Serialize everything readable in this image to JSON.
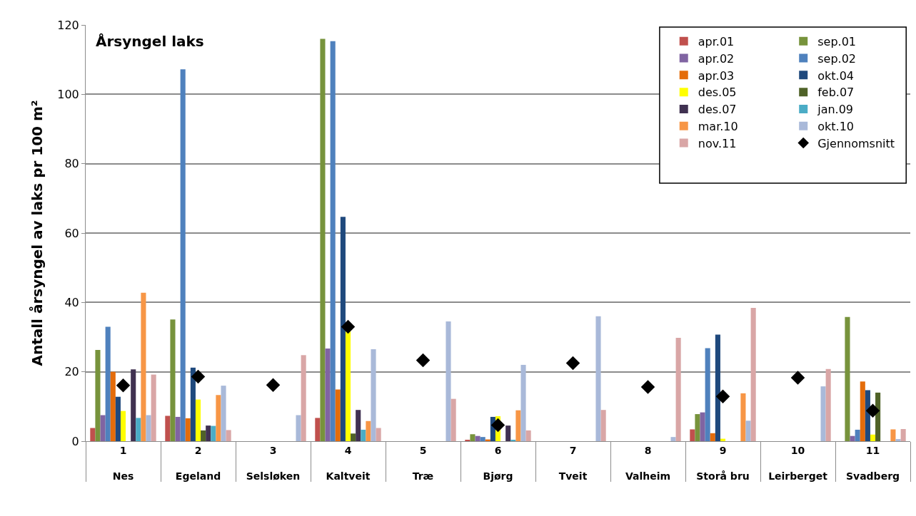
{
  "chart_data": {
    "type": "bar",
    "title": "Årsyngel laks",
    "ylabel": "Antall årsyngel av laks pr 100 m²",
    "categories": [
      "1\nNes",
      "2\nEgeland",
      "3\nSelsløken",
      "4\nKaltveit",
      "5\nTræ",
      "6\nBjørg",
      "7\nTveit",
      "8\nValheim",
      "9\nStorå bru",
      "10\nLeirberget",
      "11\nSvadberg"
    ],
    "ylim": [
      0,
      120
    ],
    "yticks": [
      0,
      20,
      40,
      60,
      80,
      100,
      120
    ],
    "grid": "y",
    "legend": "top right",
    "series": [
      {
        "name": "apr.01",
        "color": "#c0504d",
        "values": [
          3.8,
          7.3,
          null,
          6.7,
          null,
          0.4,
          null,
          null,
          3.4,
          null,
          null
        ]
      },
      {
        "name": "sep.01",
        "color": "#77933c",
        "values": [
          26.3,
          35.1,
          null,
          116,
          null,
          2,
          null,
          null,
          7.8,
          null,
          35.8
        ]
      },
      {
        "name": "apr.02",
        "color": "#8064a2",
        "values": [
          7.5,
          7,
          null,
          26.7,
          null,
          1.5,
          null,
          null,
          8.3,
          null,
          1.5
        ]
      },
      {
        "name": "sep.02",
        "color": "#4f81bd",
        "values": [
          33,
          107.2,
          null,
          115.3,
          null,
          1.2,
          null,
          null,
          26.8,
          null,
          3.3
        ]
      },
      {
        "name": "apr.03",
        "color": "#e46c0a",
        "values": [
          20,
          6.6,
          null,
          14.9,
          null,
          0.5,
          null,
          null,
          2.3,
          null,
          17.2
        ]
      },
      {
        "name": "okt.04",
        "color": "#1f497d",
        "values": [
          12.8,
          21.2,
          null,
          64.7,
          null,
          7,
          null,
          null,
          30.7,
          null,
          14.7
        ]
      },
      {
        "name": "des.05",
        "color": "#ffff00",
        "values": [
          8.7,
          12,
          null,
          32,
          null,
          7.2,
          null,
          null,
          0.7,
          null,
          1.9
        ]
      },
      {
        "name": "feb.07",
        "color": "#4f6228",
        "values": [
          null,
          3.1,
          null,
          2.2,
          null,
          null,
          null,
          null,
          null,
          null,
          14
        ]
      },
      {
        "name": "des.07",
        "color": "#403151",
        "values": [
          20.7,
          4.5,
          null,
          9,
          null,
          4.5,
          null,
          null,
          null,
          null,
          null
        ]
      },
      {
        "name": "jan.09",
        "color": "#4bacc6",
        "values": [
          6.7,
          4.4,
          null,
          3.3,
          null,
          0.3,
          null,
          null,
          null,
          null,
          null
        ]
      },
      {
        "name": "mar.10",
        "color": "#f79646",
        "values": [
          42.8,
          13.3,
          null,
          5.8,
          null,
          8.9,
          null,
          null,
          13.8,
          null,
          3.4
        ]
      },
      {
        "name": "okt.10",
        "color": "#a9b9d9",
        "values": [
          7.5,
          16,
          7.5,
          26.5,
          34.5,
          22,
          36,
          1.2,
          5.9,
          15.8,
          0.6
        ]
      },
      {
        "name": "nov.11",
        "color": "#d9a6a6",
        "values": [
          19.2,
          3.2,
          24.8,
          3.8,
          12.2,
          3.1,
          9,
          29.8,
          38.4,
          20.8,
          3.5
        ]
      },
      {
        "name": "Gjennomsnitt",
        "type": "scatter",
        "marker": "diamond",
        "color": "#000000",
        "values": [
          16.1,
          18.6,
          16.2,
          33,
          23.3,
          4.6,
          22.5,
          15.6,
          12.9,
          18.3,
          8.8
        ]
      }
    ]
  }
}
